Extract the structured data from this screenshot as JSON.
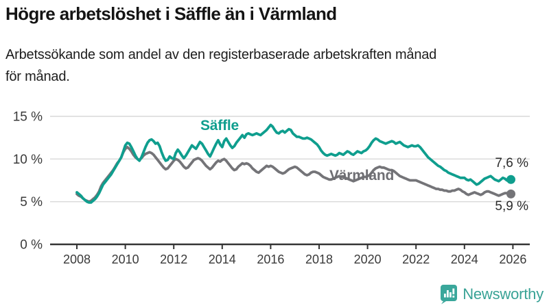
{
  "header": {
    "title": "Högre arbetslöshet i Säffle än i Värmland",
    "subtitle_line1": "Arbetssökande som andel av den registerbaserade arbetskraften månad",
    "subtitle_line2": "för månad."
  },
  "branding": {
    "logo_text": "Newsworthy",
    "logo_color": "#38a295"
  },
  "chart_data": {
    "type": "line",
    "title": "Högre arbetslöshet i Säffle än i Värmland",
    "subtitle": "Arbetssökande som andel av den registerbaserade arbetskraften månad för månad.",
    "unit": "%",
    "grid": "horizontal-only",
    "legend_position": "inline-labels-on-lines",
    "x_start_year": 2008,
    "points_per_year": 12,
    "xlim": [
      2008,
      2026.2
    ],
    "ylim": [
      0,
      15
    ],
    "x_tick_labels": [
      "2008",
      "2010",
      "2012",
      "2014",
      "2016",
      "2018",
      "2020",
      "2022",
      "2024",
      "2026"
    ],
    "x_tick_years": [
      2008,
      2010,
      2012,
      2014,
      2016,
      2018,
      2020,
      2022,
      2024,
      2026
    ],
    "y_tick_labels": [
      "0 %",
      "5 %",
      "10 %",
      "15 %"
    ],
    "y_tick_values": [
      0,
      5,
      10,
      15
    ],
    "series": [
      {
        "name": "Värmland",
        "color": "#747478",
        "end_label": "5,9 %",
        "end_value": 5.9,
        "values": [
          5.9,
          5.7,
          5.6,
          5.4,
          5.2,
          5.1,
          5.0,
          5.1,
          5.3,
          5.5,
          5.8,
          6.2,
          6.8,
          7.2,
          7.5,
          7.8,
          8.1,
          8.4,
          8.7,
          9.1,
          9.5,
          9.8,
          10.2,
          10.8,
          11.2,
          11.4,
          11.2,
          10.9,
          10.5,
          10.2,
          10.0,
          9.9,
          10.1,
          10.4,
          10.6,
          10.7,
          10.8,
          10.7,
          10.5,
          10.2,
          9.9,
          9.6,
          9.3,
          9.0,
          8.8,
          8.9,
          9.2,
          9.5,
          9.8,
          10.0,
          9.9,
          9.7,
          9.4,
          9.1,
          8.9,
          9.0,
          9.3,
          9.6,
          9.9,
          10.0,
          10.1,
          10.0,
          9.8,
          9.5,
          9.2,
          9.0,
          8.8,
          9.0,
          9.3,
          9.6,
          9.8,
          9.7,
          9.9,
          10.0,
          9.8,
          9.5,
          9.2,
          8.9,
          8.7,
          8.8,
          9.1,
          9.3,
          9.5,
          9.4,
          9.5,
          9.4,
          9.2,
          8.9,
          8.7,
          8.5,
          8.4,
          8.6,
          8.8,
          9.0,
          9.2,
          9.1,
          9.2,
          9.1,
          8.9,
          8.7,
          8.5,
          8.4,
          8.3,
          8.4,
          8.6,
          8.8,
          8.9,
          9.0,
          9.1,
          9.0,
          8.8,
          8.6,
          8.4,
          8.2,
          8.1,
          8.2,
          8.4,
          8.5,
          8.5,
          8.4,
          8.3,
          8.1,
          7.9,
          7.8,
          7.7,
          7.6,
          7.6,
          7.7,
          7.8,
          7.9,
          8.0,
          7.9,
          7.9,
          7.8,
          7.7,
          7.6,
          7.5,
          7.4,
          7.5,
          7.6,
          7.7,
          7.8,
          7.9,
          7.9,
          8.0,
          8.1,
          8.4,
          8.7,
          8.9,
          9.0,
          9.1,
          9.0,
          9.0,
          8.9,
          8.8,
          8.7,
          8.7,
          8.6,
          8.4,
          8.2,
          8.0,
          7.9,
          7.8,
          7.7,
          7.6,
          7.5,
          7.5,
          7.5,
          7.5,
          7.4,
          7.3,
          7.2,
          7.1,
          7.0,
          6.9,
          6.8,
          6.7,
          6.6,
          6.5,
          6.5,
          6.4,
          6.4,
          6.3,
          6.3,
          6.2,
          6.2,
          6.3,
          6.3,
          6.4,
          6.5,
          6.4,
          6.2,
          6.1,
          5.9,
          5.8,
          5.9,
          6.0,
          6.1,
          6.0,
          5.9,
          5.8,
          5.9,
          6.1,
          6.2,
          6.2,
          6.1,
          6.0,
          5.9,
          5.8,
          5.7,
          5.8,
          5.9,
          6.0,
          6.0,
          5.9,
          5.9
        ]
      },
      {
        "name": "Säffle",
        "color": "#0f9e8e",
        "end_label": "7,6 %",
        "end_value": 7.6,
        "values": [
          6.1,
          5.9,
          5.7,
          5.4,
          5.2,
          5.0,
          4.9,
          4.9,
          5.1,
          5.3,
          5.6,
          6.0,
          6.5,
          7.0,
          7.3,
          7.6,
          7.9,
          8.2,
          8.6,
          9.0,
          9.4,
          9.8,
          10.2,
          10.9,
          11.6,
          11.9,
          11.8,
          11.4,
          10.9,
          10.4,
          10.0,
          9.8,
          10.2,
          10.8,
          11.4,
          11.9,
          12.2,
          12.3,
          12.1,
          11.8,
          11.9,
          11.5,
          10.8,
          10.2,
          9.8,
          9.9,
          10.3,
          10.1,
          10.0,
          10.7,
          11.1,
          10.8,
          10.4,
          10.1,
          10.4,
          10.8,
          11.2,
          11.6,
          11.4,
          11.2,
          11.6,
          12.0,
          11.8,
          11.4,
          11.0,
          10.6,
          10.3,
          10.8,
          11.3,
          11.8,
          12.2,
          11.7,
          11.4,
          12.1,
          12.4,
          12.0,
          11.6,
          11.3,
          11.5,
          11.9,
          12.2,
          12.5,
          12.8,
          12.5,
          12.9,
          13.0,
          12.9,
          12.8,
          12.9,
          13.0,
          12.9,
          12.8,
          13.0,
          13.2,
          13.4,
          13.7,
          14.0,
          13.8,
          13.4,
          13.1,
          13.0,
          13.2,
          13.3,
          13.1,
          13.3,
          13.5,
          13.4,
          13.0,
          12.8,
          12.6,
          12.6,
          12.5,
          12.4,
          12.4,
          12.5,
          12.4,
          12.3,
          12.1,
          11.9,
          11.7,
          11.4,
          11.0,
          10.7,
          10.5,
          10.4,
          10.5,
          10.6,
          10.5,
          10.4,
          10.5,
          10.7,
          10.6,
          10.5,
          10.7,
          10.9,
          10.8,
          10.6,
          10.5,
          10.7,
          10.9,
          10.8,
          10.7,
          10.9,
          11.0,
          11.2,
          11.5,
          11.9,
          12.2,
          12.4,
          12.3,
          12.1,
          12.0,
          11.9,
          11.8,
          11.9,
          12.0,
          12.1,
          12.0,
          11.8,
          11.9,
          12.0,
          11.8,
          11.6,
          11.5,
          11.4,
          11.5,
          11.6,
          11.5,
          11.5,
          11.6,
          11.4,
          11.1,
          10.8,
          10.5,
          10.2,
          10.0,
          9.8,
          9.6,
          9.4,
          9.2,
          9.1,
          8.9,
          8.7,
          8.6,
          8.4,
          8.3,
          8.2,
          8.1,
          8.0,
          7.9,
          7.8,
          7.8,
          7.8,
          7.6,
          7.5,
          7.6,
          7.4,
          7.2,
          7.0,
          7.1,
          7.3,
          7.5,
          7.7,
          7.8,
          7.9,
          8.0,
          7.8,
          7.6,
          7.5,
          7.4,
          7.6,
          7.8,
          7.7,
          7.5,
          7.4,
          7.6
        ]
      }
    ]
  }
}
